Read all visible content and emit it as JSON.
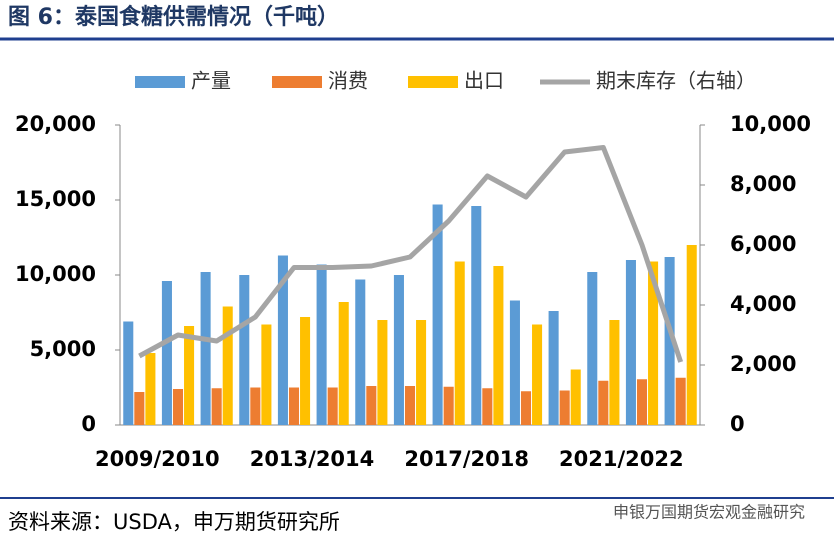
{
  "header": {
    "title": "图 6：泰国食糖供需情况（千吨）"
  },
  "chart_data": {
    "type": "bar_line",
    "categories": [
      "2009/2010",
      null,
      null,
      null,
      "2013/2014",
      null,
      null,
      null,
      "2017/2018",
      null,
      null,
      null,
      "2021/2022",
      null,
      null
    ],
    "series": [
      {
        "name": "产量",
        "color": "#5b9bd5",
        "type": "bar",
        "values": [
          6900,
          9600,
          10200,
          10000,
          11300,
          10700,
          9700,
          10000,
          14700,
          14600,
          8300,
          7600,
          10200,
          11000,
          11200
        ]
      },
      {
        "name": "消费",
        "color": "#ed7d31",
        "type": "bar",
        "values": [
          2200,
          2400,
          2450,
          2500,
          2500,
          2500,
          2600,
          2600,
          2550,
          2450,
          2250,
          2300,
          2950,
          3050,
          3150
        ]
      },
      {
        "name": "出口",
        "color": "#ffc000",
        "type": "bar",
        "values": [
          4800,
          6600,
          7900,
          6700,
          7200,
          8200,
          7000,
          7000,
          10900,
          10600,
          6700,
          3700,
          7000,
          10900,
          12000
        ]
      },
      {
        "name": "期末库存（右轴）",
        "color": "#a5a5a5",
        "type": "line",
        "axis": "y2",
        "values": [
          2300,
          3000,
          2800,
          3600,
          5250,
          5250,
          5300,
          5600,
          6800,
          8300,
          7600,
          9100,
          9250,
          6000,
          2100
        ]
      }
    ],
    "ylim": [
      0,
      20000
    ],
    "yticks": [
      0,
      {
        "value": 5000,
        "label": "5,000"
      },
      {
        "value": 10000,
        "label": "10,000"
      },
      {
        "value": 15000,
        "label": "15,000"
      },
      {
        "value": 20000,
        "label": "20,000"
      }
    ],
    "y2lim": [
      0,
      10000
    ],
    "y2ticks": [
      0,
      {
        "value": 2000,
        "label": "2,000"
      },
      {
        "value": 4000,
        "label": "4,000"
      },
      {
        "value": 6000,
        "label": "6,000"
      },
      {
        "value": 8000,
        "label": "8,000"
      },
      {
        "value": 10000,
        "label": "10,000"
      }
    ],
    "legend": "top"
  },
  "footer": {
    "source": "资料来源：USDA，申万期货研究所",
    "watermark": "申银万国期货宏观金融研究"
  }
}
